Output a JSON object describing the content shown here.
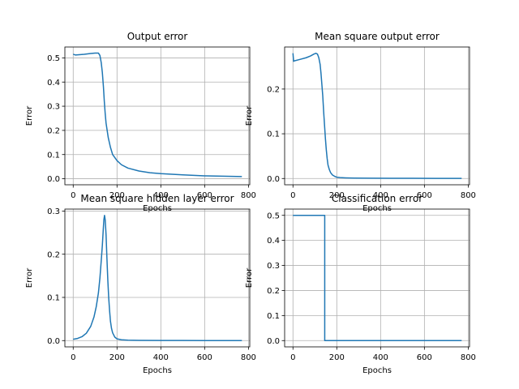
{
  "chart_data": [
    {
      "type": "line",
      "title": "Output error",
      "xlabel": "Epochs",
      "ylabel": "Error",
      "xlim": [
        -38,
        806
      ],
      "ylim": [
        -0.025,
        0.545
      ],
      "xticks": [
        0,
        200,
        400,
        600,
        800
      ],
      "yticks": [
        0.0,
        0.1,
        0.2,
        0.3,
        0.4,
        0.5
      ],
      "ytick_labels": [
        "0.0",
        "0.1",
        "0.2",
        "0.3",
        "0.4",
        "0.5"
      ],
      "grid": true,
      "series": [
        {
          "x": [
            0,
            10,
            50,
            80,
            100,
            115,
            122,
            128,
            133,
            138,
            142,
            146,
            150,
            155,
            160,
            170,
            180,
            200,
            220,
            250,
            300,
            350,
            400,
            500,
            600,
            700,
            770
          ],
          "y": [
            0.515,
            0.512,
            0.515,
            0.518,
            0.52,
            0.52,
            0.51,
            0.48,
            0.44,
            0.38,
            0.32,
            0.27,
            0.23,
            0.2,
            0.17,
            0.13,
            0.1,
            0.075,
            0.058,
            0.044,
            0.032,
            0.025,
            0.021,
            0.016,
            0.012,
            0.01,
            0.009
          ]
        }
      ]
    },
    {
      "type": "line",
      "title": "Mean square output error",
      "xlabel": "Epochs",
      "ylabel": "Error",
      "xlim": [
        -38,
        806
      ],
      "ylim": [
        -0.014,
        0.294
      ],
      "xticks": [
        0,
        200,
        400,
        600,
        800
      ],
      "yticks": [
        0.0,
        0.1,
        0.2
      ],
      "ytick_labels": [
        "0.0",
        "0.1",
        "0.2"
      ],
      "grid": true,
      "series": [
        {
          "x": [
            0,
            3,
            6,
            30,
            60,
            80,
            95,
            105,
            112,
            118,
            124,
            128,
            132,
            136,
            140,
            144,
            148,
            152,
            156,
            160,
            166,
            172,
            180,
            190,
            200,
            215,
            240,
            280,
            350,
            450,
            550,
            650,
            770
          ],
          "y": [
            0.28,
            0.262,
            0.263,
            0.266,
            0.27,
            0.274,
            0.278,
            0.28,
            0.278,
            0.27,
            0.255,
            0.235,
            0.21,
            0.185,
            0.15,
            0.12,
            0.09,
            0.065,
            0.045,
            0.03,
            0.02,
            0.013,
            0.008,
            0.005,
            0.003,
            0.002,
            0.0015,
            0.001,
            0.0007,
            0.0005,
            0.0004,
            0.0003,
            0.0002
          ]
        }
      ]
    },
    {
      "type": "line",
      "title": "Mean square hidden layer error",
      "xlabel": "Epochs",
      "ylabel": "Error",
      "xlim": [
        -38,
        806
      ],
      "ylim": [
        -0.0145,
        0.3045
      ],
      "xticks": [
        0,
        200,
        400,
        600,
        800
      ],
      "yticks": [
        0.0,
        0.1,
        0.2,
        0.3
      ],
      "ytick_labels": [
        "0.0",
        "0.1",
        "0.2",
        "0.3"
      ],
      "grid": true,
      "series": [
        {
          "x": [
            0,
            20,
            40,
            60,
            80,
            95,
            105,
            115,
            122,
            128,
            133,
            137,
            140,
            143,
            146,
            150,
            154,
            158,
            162,
            166,
            170,
            175,
            180,
            190,
            200,
            220,
            250,
            300,
            400,
            500,
            600,
            700,
            770
          ],
          "y": [
            0.003,
            0.005,
            0.009,
            0.017,
            0.033,
            0.055,
            0.078,
            0.11,
            0.145,
            0.185,
            0.22,
            0.255,
            0.28,
            0.29,
            0.28,
            0.245,
            0.19,
            0.14,
            0.1,
            0.07,
            0.045,
            0.028,
            0.018,
            0.008,
            0.004,
            0.002,
            0.001,
            0.0005,
            0.0003,
            0.0002,
            0.0001,
            0.0001,
            0.0001
          ]
        }
      ]
    },
    {
      "type": "line",
      "title": "Classification error",
      "xlabel": "Epochs",
      "ylabel": "Error",
      "xlim": [
        -38,
        806
      ],
      "ylim": [
        -0.025,
        0.525
      ],
      "xticks": [
        0,
        200,
        400,
        600,
        800
      ],
      "yticks": [
        0.0,
        0.1,
        0.2,
        0.3,
        0.4,
        0.5
      ],
      "ytick_labels": [
        "0.0",
        "0.1",
        "0.2",
        "0.3",
        "0.4",
        "0.5"
      ],
      "grid": true,
      "series": [
        {
          "x": [
            0,
            145,
            145,
            770
          ],
          "y": [
            0.5,
            0.5,
            0.0,
            0.0
          ]
        }
      ]
    }
  ]
}
